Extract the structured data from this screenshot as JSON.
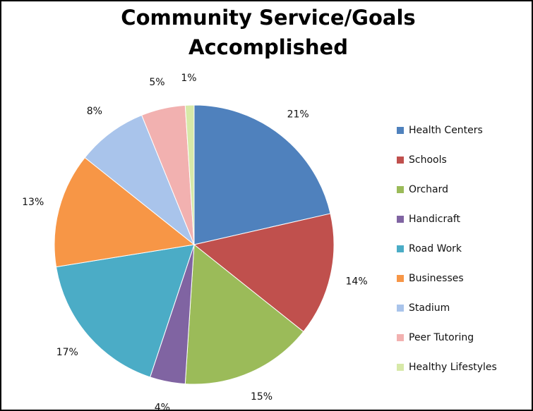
{
  "chart_data": {
    "type": "pie",
    "title": "Community Service/Goals Accomplished",
    "categories": [
      "Health Centers",
      "Schools",
      "Orchard",
      "Handicraft",
      "Road Work",
      "Businesses",
      "Stadium",
      "Peer Tutoring",
      "Healthy Lifestyles"
    ],
    "values": [
      21,
      14,
      15,
      4,
      17,
      13,
      8,
      5,
      1
    ],
    "value_labels": [
      "21%",
      "14%",
      "15%",
      "4%",
      "17%",
      "13%",
      "8%",
      "5%",
      "1%"
    ],
    "colors": [
      "#4f81bd",
      "#c0504d",
      "#9bbb59",
      "#8064a2",
      "#4bacc6",
      "#f79646",
      "#a9c4eb",
      "#f2b1b0",
      "#d7e9a8"
    ],
    "legend": "right"
  }
}
